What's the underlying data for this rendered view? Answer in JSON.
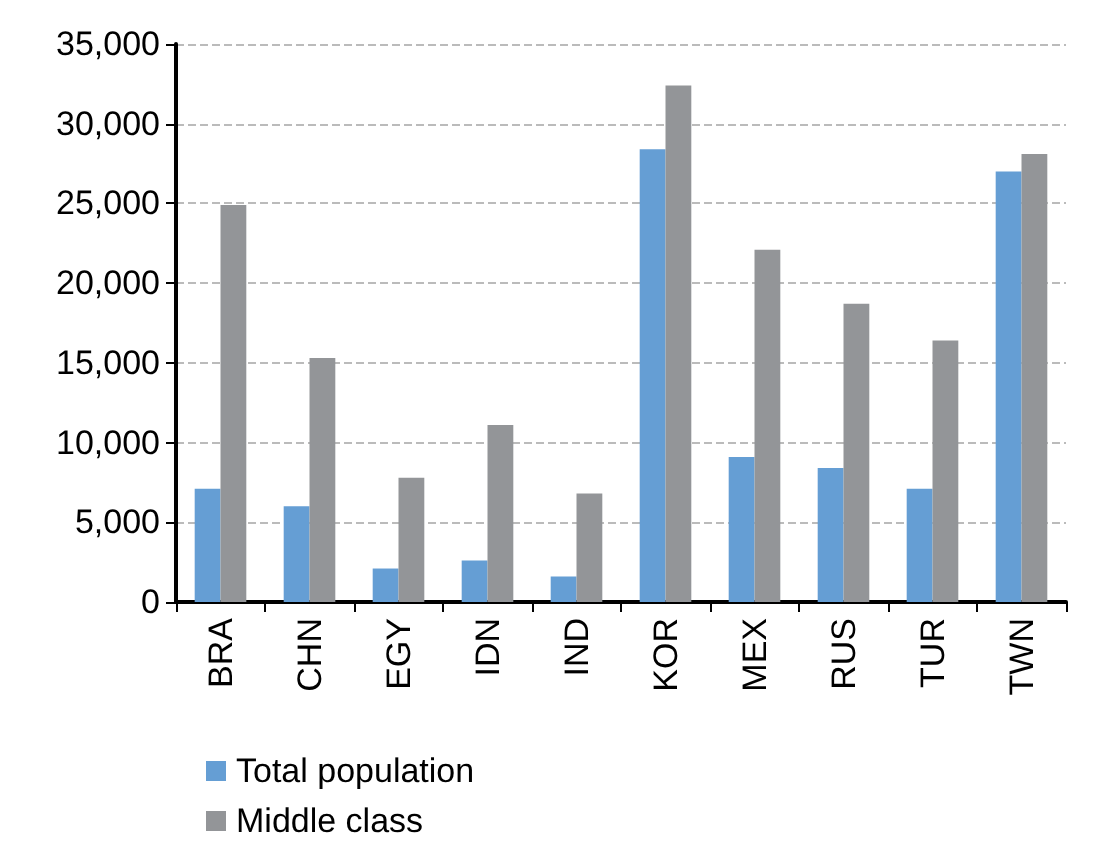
{
  "chart_data": {
    "type": "bar",
    "categories": [
      "BRA",
      "CHN",
      "EGY",
      "IDN",
      "IND",
      "KOR",
      "MEX",
      "RUS",
      "TUR",
      "TWN"
    ],
    "series": [
      {
        "name": "Total population",
        "color": "#659ed4",
        "values": [
          7100,
          6000,
          2100,
          2600,
          1600,
          28400,
          9100,
          8400,
          7100,
          27000
        ]
      },
      {
        "name": "Middle class",
        "color": "#939598",
        "values": [
          24900,
          15300,
          7800,
          11100,
          6800,
          32400,
          22100,
          18700,
          16400,
          28100
        ]
      }
    ],
    "ylim": [
      0,
      35000
    ],
    "yticks": [
      0,
      {
        "value": 5000,
        "label": "5,000"
      },
      {
        "value": 10000,
        "label": "10,000"
      },
      {
        "value": 15000,
        "label": "15,000"
      },
      {
        "value": 20000,
        "label": "20,000"
      },
      {
        "value": 25000,
        "label": "25,000"
      },
      {
        "value": 30000,
        "label": "30,000"
      },
      {
        "value": 35000,
        "label": "35,000"
      }
    ],
    "grid": "y",
    "legend": "bottom"
  }
}
